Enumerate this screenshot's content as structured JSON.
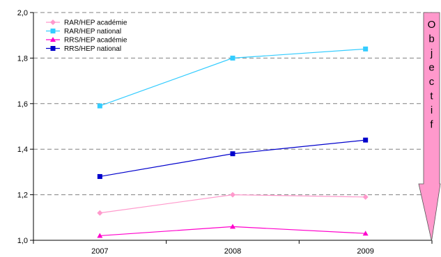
{
  "chart_data": {
    "type": "line",
    "categories": [
      "2007",
      "2008",
      "2009"
    ],
    "ylim": [
      1.0,
      2.0
    ],
    "y_ticks": [
      "1,0",
      "1,2",
      "1,4",
      "1,6",
      "1,8",
      "2,0"
    ],
    "grid": "horizontal dashed",
    "legend_position": "top-left",
    "series": [
      {
        "name": "RAR/HEP académie",
        "color": "#FF99CC",
        "marker": "diamond",
        "values": [
          1.12,
          1.2,
          1.19
        ]
      },
      {
        "name": "RAR/HEP national",
        "color": "#33CCFF",
        "marker": "square",
        "values": [
          1.59,
          1.8,
          1.84
        ]
      },
      {
        "name": "RRS/HEP académie",
        "color": "#FF00CC",
        "marker": "triangle",
        "values": [
          1.02,
          1.06,
          1.03
        ]
      },
      {
        "name": "RRS/HEP national",
        "color": "#0000CC",
        "marker": "square",
        "values": [
          1.28,
          1.38,
          1.44
        ]
      }
    ],
    "annotation": {
      "text": "Objectif",
      "letters": [
        "O",
        "b",
        "j",
        "e",
        "c",
        "t",
        "i",
        "f"
      ],
      "fill": "#FF99CC",
      "direction": "down"
    }
  }
}
